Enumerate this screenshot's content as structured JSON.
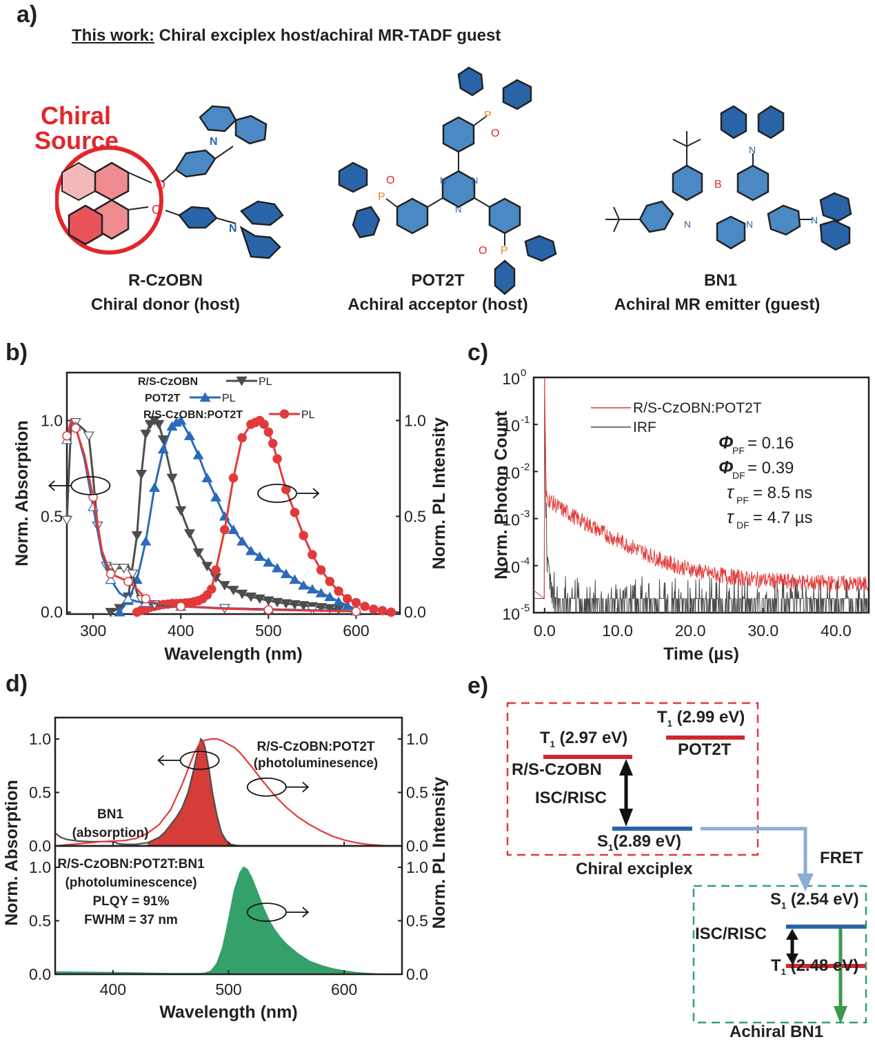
{
  "panel_a": {
    "label": "a)",
    "heading_prefix": "This work:",
    "heading_rest": " Chiral exciplex host/achiral MR-TADF guest",
    "chiral_source_line1": "Chiral",
    "chiral_source_line2": "Source",
    "molecules": [
      {
        "name": "R-CzOBN",
        "role": "Chiral donor (host)",
        "atoms": [
          "O",
          "O",
          "N",
          "N"
        ]
      },
      {
        "name": "POT2T",
        "role": "Achiral acceptor (host)",
        "atoms": [
          "P",
          "O",
          "P",
          "O",
          "P",
          "O",
          "N",
          "N",
          "N"
        ]
      },
      {
        "name": "BN1",
        "role": "Achiral MR emitter (guest)",
        "atoms": [
          "B",
          "N",
          "N",
          "N",
          "N"
        ]
      }
    ],
    "colors": {
      "chiral_red": "#e3262b",
      "host_blue": "#4a89c4",
      "dark_blue": "#2a64a8",
      "phosphorus": "#e8821e"
    }
  },
  "chart_data": [
    {
      "panel": "b)",
      "type": "line",
      "xlabel": "Wavelength (nm)",
      "ylabel": "Norm. Absorption",
      "y2label": "Norm. PL Intensity",
      "xlim": [
        270,
        650
      ],
      "ylim": [
        -0.01,
        1.25
      ],
      "xticks": [
        300,
        400,
        500,
        600
      ],
      "yticks": [
        "0.0",
        "0.5",
        "1.0"
      ],
      "y2ticks": [
        "0.0",
        "0.5",
        "1.0"
      ],
      "legend": [
        {
          "label": "R/S-CzOBN",
          "suffix": "PL",
          "color": "#4d4d4d",
          "marker": "triangle-down"
        },
        {
          "label": "POT2T",
          "suffix": "PL",
          "color": "#2a6ab8",
          "marker": "triangle-up"
        },
        {
          "label": "R/S-CzOBN:POT2T",
          "suffix": "PL",
          "color": "#e23a3a",
          "marker": "circle"
        }
      ],
      "legend_position": "top-center",
      "series": [
        {
          "name": "R/S-CzOBN PL",
          "color": "#4d4d4d",
          "marker": "triangle-down",
          "filled": true,
          "x": [
            320,
            330,
            340,
            350,
            355,
            360,
            365,
            370,
            375,
            380,
            390,
            400,
            410,
            420,
            430,
            440,
            450,
            460,
            470,
            480,
            490,
            500,
            510,
            520,
            530,
            540,
            550,
            560,
            570,
            580
          ],
          "y": [
            0.0,
            0.02,
            0.08,
            0.4,
            0.72,
            0.93,
            0.98,
            1.0,
            0.98,
            0.9,
            0.7,
            0.53,
            0.41,
            0.31,
            0.24,
            0.18,
            0.14,
            0.115,
            0.095,
            0.08,
            0.07,
            0.06,
            0.052,
            0.045,
            0.04,
            0.035,
            0.03,
            0.025,
            0.02,
            0.015
          ]
        },
        {
          "name": "POT2T PL",
          "color": "#2a6ab8",
          "marker": "triangle-up",
          "filled": true,
          "x": [
            330,
            340,
            350,
            360,
            370,
            380,
            390,
            395,
            400,
            410,
            420,
            430,
            440,
            450,
            460,
            470,
            480,
            490,
            500,
            510,
            520,
            530,
            540,
            550,
            560,
            570,
            580,
            590,
            600
          ],
          "y": [
            0.0,
            0.06,
            0.17,
            0.37,
            0.65,
            0.85,
            0.97,
            0.99,
            1.0,
            0.92,
            0.82,
            0.7,
            0.6,
            0.5,
            0.43,
            0.37,
            0.32,
            0.29,
            0.26,
            0.23,
            0.2,
            0.17,
            0.14,
            0.12,
            0.1,
            0.08,
            0.055,
            0.035,
            0.015
          ]
        },
        {
          "name": "R/S-CzOBN:POT2T PL",
          "color": "#e23a3a",
          "marker": "circle",
          "filled": true,
          "x": [
            350,
            355,
            360,
            365,
            370,
            375,
            380,
            385,
            390,
            395,
            400,
            405,
            410,
            415,
            420,
            425,
            430,
            435,
            440,
            450,
            460,
            470,
            480,
            485,
            490,
            495,
            500,
            505,
            510,
            520,
            530,
            540,
            550,
            560,
            570,
            580,
            590,
            600,
            610,
            620,
            630,
            640
          ],
          "y": [
            0.0,
            0.01,
            0.015,
            0.025,
            0.03,
            0.035,
            0.04,
            0.042,
            0.045,
            0.045,
            0.046,
            0.048,
            0.05,
            0.055,
            0.06,
            0.07,
            0.09,
            0.12,
            0.22,
            0.43,
            0.7,
            0.91,
            0.98,
            0.99,
            1.0,
            0.98,
            0.94,
            0.88,
            0.8,
            0.64,
            0.52,
            0.4,
            0.3,
            0.22,
            0.16,
            0.11,
            0.07,
            0.05,
            0.03,
            0.015,
            0.008,
            0.0
          ]
        },
        {
          "name": "R/S-CzOBN absorption",
          "color": "#4d4d4d",
          "marker": "triangle-down-open",
          "x": [
            270,
            275,
            280,
            290,
            295,
            300,
            305,
            310,
            315,
            320,
            325,
            330,
            335,
            340,
            345,
            350,
            355,
            360,
            370,
            400,
            450,
            500,
            550,
            600
          ],
          "y": [
            0.48,
            1.0,
            0.99,
            0.95,
            0.92,
            0.7,
            0.45,
            0.3,
            0.24,
            0.22,
            0.23,
            0.23,
            0.23,
            0.24,
            0.2,
            0.1,
            0.065,
            0.05,
            0.04,
            0.03,
            0.02,
            0.015,
            0.01,
            0.005
          ]
        },
        {
          "name": "POT2T absorption",
          "color": "#2a6ab8",
          "marker": "triangle-up-open",
          "x": [
            270,
            275,
            280,
            290,
            300,
            310,
            320,
            330,
            340,
            350,
            360,
            370,
            400,
            450,
            500,
            550,
            600
          ],
          "y": [
            0.9,
            1.0,
            0.97,
            0.8,
            0.55,
            0.3,
            0.17,
            0.1,
            0.07,
            0.055,
            0.05,
            0.045,
            0.03,
            0.02,
            0.015,
            0.01,
            0.005
          ]
        },
        {
          "name": "R/S-CzOBN:POT2T absorption",
          "color": "#e23a3a",
          "marker": "circle-open",
          "x": [
            270,
            275,
            280,
            290,
            300,
            310,
            320,
            330,
            340,
            350,
            360,
            370,
            400,
            450,
            500,
            550,
            600
          ],
          "y": [
            0.92,
            1.0,
            0.96,
            0.82,
            0.6,
            0.32,
            0.2,
            0.18,
            0.16,
            0.12,
            0.07,
            0.05,
            0.03,
            0.018,
            0.012,
            0.008,
            0.004
          ]
        }
      ],
      "annotations": [
        {
          "kind": "ellipse-arrow-left",
          "x": 297,
          "y": 0.66
        },
        {
          "kind": "ellipse-arrow-right",
          "x": 510,
          "y": 0.62
        }
      ]
    },
    {
      "panel": "c)",
      "type": "line",
      "yscale": "log",
      "xlabel": "Time (µs)",
      "ylabel": "Norm. Photon Count",
      "xlim": [
        -1.5,
        44.5
      ],
      "ylim": [
        1e-05,
        1
      ],
      "xticks": [
        "0.0",
        "10.0",
        "20.0",
        "30.0",
        "40.0"
      ],
      "yticks": [
        {
          "base": "10",
          "exp": "0"
        },
        {
          "base": "10",
          "exp": "-1"
        },
        {
          "base": "10",
          "exp": "-2"
        },
        {
          "base": "10",
          "exp": "-3"
        },
        {
          "base": "10",
          "exp": "-4"
        },
        {
          "base": "10",
          "exp": "-5"
        }
      ],
      "legend": [
        {
          "label": "R/S-CzOBN:POT2T",
          "color": "#e23a3a"
        },
        {
          "label": "IRF",
          "color": "#4a4a4a"
        }
      ],
      "legend_position": "top-center",
      "series": [
        {
          "name": "R/S-CzOBN:POT2T",
          "color": "#e23a3a",
          "x": [
            0.0,
            0.2,
            0.5,
            2,
            4,
            6,
            8,
            10,
            12,
            14,
            16,
            18,
            20,
            22,
            25,
            28,
            32,
            36,
            40,
            44
          ],
          "y": [
            1.0,
            0.003,
            0.0026,
            0.0017,
            0.0011,
            0.00075,
            0.0005,
            0.00035,
            0.00025,
            0.00018,
            0.00013,
            0.0001,
            8.5e-05,
            7e-05,
            6e-05,
            5.2e-05,
            4.7e-05,
            4.4e-05,
            4.2e-05,
            4e-05
          ]
        },
        {
          "name": "IRF",
          "color": "#4a4a4a",
          "x": [
            0.0,
            0.1,
            0.3,
            0.6,
            1.0,
            1.5,
            5,
            10,
            20,
            30,
            40,
            44
          ],
          "y": [
            1.0,
            0.01,
            0.0002,
            0.0001,
            4e-05,
            2e-05,
            2e-05,
            2e-05,
            2e-05,
            2e-05,
            2e-05,
            2e-05
          ]
        }
      ],
      "annotations": [
        {
          "symbol": "Φ",
          "sub": "PF",
          "text": " = 0.16"
        },
        {
          "symbol": "Φ",
          "sub": "DF",
          "text": " = 0.39"
        },
        {
          "symbol": "τ",
          "sub": "PF",
          "text": " = 8.5 ns"
        },
        {
          "symbol": "τ",
          "sub": "DF",
          "text": " = 4.7 µs"
        }
      ]
    },
    {
      "panel": "d)",
      "type": "area",
      "xlabel": "Wavelength (nm)",
      "ylabel": "Norm. Absorption",
      "y2label": "Norm. PL Intensity",
      "xlim": [
        350,
        650
      ],
      "xticks": [
        400,
        500,
        600
      ],
      "subplots": [
        {
          "name": "top",
          "ylim": [
            0,
            1.2
          ],
          "yticks": [
            "0.0",
            "0.5",
            "1.0"
          ],
          "y2ticks": [
            "0.0",
            "0.5",
            "1.0"
          ],
          "labels": [
            {
              "line1": "R/S-CzOBN:POT2T",
              "line2": "(photoluminesence)"
            },
            {
              "line1": "BN1",
              "line2": "(absorption)"
            }
          ],
          "series": [
            {
              "name": "BN1 absorption",
              "color": "#4d4d4d",
              "fill": "#d63c38",
              "x": [
                350,
                355,
                360,
                370,
                380,
                390,
                400,
                405,
                410,
                420,
                430,
                440,
                445,
                450,
                455,
                460,
                465,
                470,
                473,
                476,
                478,
                480,
                483,
                486,
                490,
                494,
                498,
                502,
                506,
                510
              ],
              "y": [
                0.12,
                0.08,
                0.06,
                0.045,
                0.04,
                0.04,
                0.04,
                0.02,
                0.015,
                0.015,
                0.03,
                0.08,
                0.13,
                0.2,
                0.27,
                0.36,
                0.5,
                0.72,
                0.88,
                1.0,
                0.98,
                0.9,
                0.72,
                0.5,
                0.28,
                0.12,
                0.05,
                0.015,
                0.005,
                0.0
              ]
            },
            {
              "name": "R/S-CzOBN:POT2T PL",
              "color": "#e23a3a",
              "x": [
                350,
                360,
                370,
                380,
                390,
                400,
                410,
                420,
                430,
                440,
                450,
                460,
                465,
                470,
                475,
                480,
                485,
                490,
                495,
                500,
                505,
                510,
                520,
                530,
                540,
                550,
                560,
                570,
                580,
                590,
                600,
                610,
                620,
                630,
                640
              ],
              "y": [
                0.0,
                0.01,
                0.02,
                0.03,
                0.04,
                0.045,
                0.05,
                0.07,
                0.12,
                0.2,
                0.34,
                0.58,
                0.72,
                0.86,
                0.96,
                0.99,
                1.0,
                1.0,
                0.98,
                0.95,
                0.92,
                0.87,
                0.74,
                0.6,
                0.47,
                0.36,
                0.27,
                0.2,
                0.14,
                0.09,
                0.055,
                0.03,
                0.015,
                0.006,
                0.0
              ]
            }
          ]
        },
        {
          "name": "bottom",
          "ylim": [
            0,
            1.2
          ],
          "yticks": [
            "0.0",
            "0.5",
            "1.0"
          ],
          "y2ticks": [
            "0.0",
            "0.5",
            "1.0"
          ],
          "labels": [
            {
              "line1": "R/S-CzOBN:POT2T:BN1",
              "line2": "(photoluminescence)",
              "line3": "PLQY = 91%",
              "line4": "FWHM = 37 nm"
            }
          ],
          "series": [
            {
              "name": "R/S-CzOBN:POT2T:BN1 PL",
              "color": "#34a06a",
              "fill": "#34a06a",
              "x": [
                350,
                400,
                450,
                475,
                480,
                485,
                490,
                495,
                500,
                505,
                510,
                513,
                516,
                520,
                525,
                530,
                535,
                540,
                545,
                550,
                560,
                570,
                580,
                590,
                600,
                610,
                620,
                630
              ],
              "y": [
                0.02,
                0.015,
                0.005,
                0.005,
                0.01,
                0.03,
                0.1,
                0.25,
                0.5,
                0.78,
                0.95,
                1.0,
                0.98,
                0.9,
                0.76,
                0.62,
                0.5,
                0.41,
                0.34,
                0.28,
                0.19,
                0.12,
                0.08,
                0.05,
                0.03,
                0.015,
                0.007,
                0.0
              ]
            }
          ]
        }
      ]
    }
  ],
  "panel_e": {
    "label": "e)",
    "exciplex_box_label": "Chiral exciplex",
    "bn1_box_label": "Achiral BN1",
    "levels": {
      "donor_t1": {
        "state": "T",
        "sub": "1",
        "energy": "(2.97 eV)",
        "material": "R/S-CzOBN"
      },
      "acceptor_t1": {
        "state": "T",
        "sub": "1",
        "energy": "(2.99 eV)",
        "material": "POT2T"
      },
      "exciplex_s1": {
        "state": "S",
        "sub": "1",
        "energy": "(2.89 eV)"
      },
      "bn1_s1": {
        "state": "S",
        "sub": "1",
        "energy": "(2.54 eV)"
      },
      "bn1_t1": {
        "state": "T",
        "sub": "1",
        "energy": "(2.48 eV)"
      }
    },
    "isc_label_1": "ISC/RISC",
    "isc_label_2": "ISC/RISC",
    "fret_label": "FRET",
    "colors": {
      "triplet": "#d1262e",
      "singlet": "#2a64a8",
      "fret": "#8aafd6",
      "emission": "#3a9a4a",
      "exciplex_box": "#e0393f",
      "bn1_box": "#35a06a"
    }
  }
}
